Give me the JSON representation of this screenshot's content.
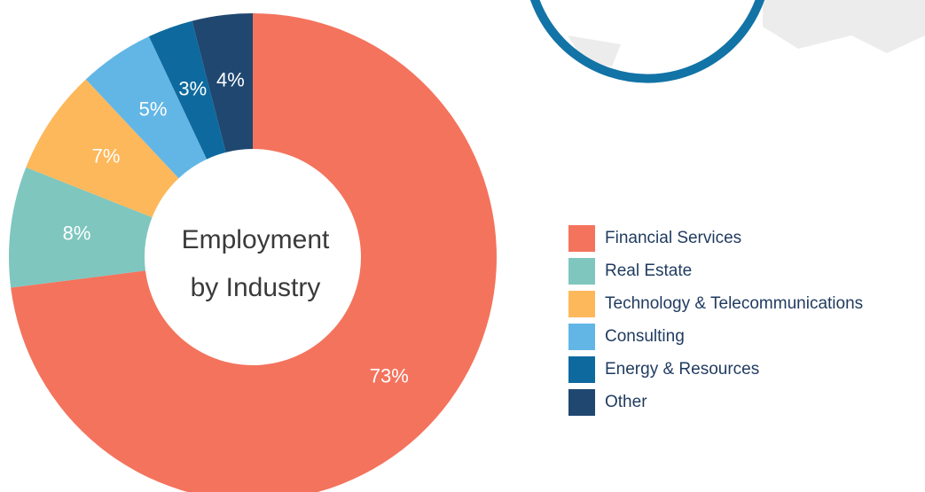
{
  "chart_data": {
    "type": "donut",
    "title_lines": [
      "Employment",
      "by Industry"
    ],
    "categories": [
      "Financial Services",
      "Real Estate",
      "Technology & Telecommunications",
      "Consulting",
      "Energy & Resources",
      "Other"
    ],
    "values": [
      73,
      8,
      7,
      5,
      3,
      4
    ],
    "value_labels": [
      "73%",
      "8%",
      "7%",
      "5%",
      "3%",
      "4%"
    ],
    "colors": [
      "#f4735d",
      "#7fc6bf",
      "#fdb85b",
      "#62b6e6",
      "#0e6a9e",
      "#1f4770"
    ],
    "legend": "right"
  }
}
